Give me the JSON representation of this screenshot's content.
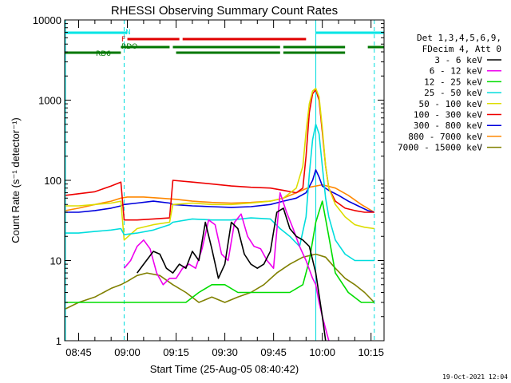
{
  "chart_data": {
    "type": "line",
    "title": "RHESSI Observing Summary Count Rates",
    "xlabel": "Start Time (25-Aug-05 08:40:42)",
    "ylabel": "Count Rate (s⁻¹ detector⁻¹)",
    "y_scale": "log",
    "ylim": [
      1,
      10000
    ],
    "xlim": [
      "08:40:42",
      "10:19:00"
    ],
    "x_ticks": [
      "08:45",
      "09:00",
      "09:15",
      "09:30",
      "09:45",
      "10:00",
      "10:15"
    ],
    "y_ticks": [
      "1",
      "10",
      "100",
      "1000",
      "10000"
    ],
    "timestamp": "19-Oct-2021 12:04",
    "legend": {
      "placement": "right",
      "header": [
        "Det 1,3,4,5,6,9,",
        "FDecim 4, Att 0"
      ]
    },
    "flags": [
      {
        "label": "N",
        "color": "#00e5e5",
        "segments": [
          [
            "08:40:42",
            "09:00"
          ],
          [
            "09:58",
            "10:19"
          ]
        ]
      },
      {
        "label": "F",
        "color": "#e00000",
        "segments": [
          [
            "09:00",
            "09:16"
          ],
          [
            "09:17",
            "09:55"
          ]
        ]
      },
      {
        "label": "RDO",
        "color": "#007700",
        "segments": [
          [
            "08:58",
            "09:13"
          ],
          [
            "09:14",
            "09:47"
          ],
          [
            "09:48",
            "10:07"
          ],
          [
            "10:14",
            "10:19"
          ]
        ]
      },
      {
        "label": "RD6",
        "color": "#007700",
        "segments": [
          [
            "08:40:42",
            "08:58"
          ],
          [
            "09:15",
            "09:47"
          ],
          [
            "09:48",
            "10:07"
          ]
        ]
      }
    ],
    "vlines": {
      "dashed_cyan": [
        "08:59",
        "10:16"
      ],
      "solid_cyan": [
        "09:58"
      ]
    },
    "series": [
      {
        "name": "3 - 6 keV",
        "color": "#000000",
        "x": [
          "09:03",
          "09:05",
          "09:08",
          "09:10",
          "09:12",
          "09:14",
          "09:16",
          "09:18",
          "09:20",
          "09:22",
          "09:24",
          "09:26",
          "09:28",
          "09:30",
          "09:32",
          "09:34",
          "09:36",
          "09:38",
          "09:40",
          "09:42",
          "09:44",
          "09:46",
          "09:48",
          "09:50",
          "09:52",
          "09:54",
          "09:56",
          "09:58",
          "10:00",
          "10:01"
        ],
        "values": [
          7,
          9,
          13,
          12,
          8,
          7,
          9,
          8,
          13,
          10,
          30,
          14,
          6,
          9,
          30,
          25,
          12,
          9,
          8,
          9,
          13,
          40,
          45,
          25,
          20,
          18,
          15,
          7,
          2,
          1
        ]
      },
      {
        "name": "6 - 12 keV",
        "color": "#ee00ee",
        "x": [
          "08:59",
          "09:01",
          "09:03",
          "09:05",
          "09:07",
          "09:09",
          "09:11",
          "09:13",
          "09:15",
          "09:17",
          "09:19",
          "09:21",
          "09:23",
          "09:25",
          "09:27",
          "09:29",
          "09:31",
          "09:33",
          "09:35",
          "09:37",
          "09:39",
          "09:41",
          "09:43",
          "09:45",
          "09:47",
          "09:49",
          "09:51",
          "09:53",
          "09:55",
          "09:57",
          "09:58",
          "09:59",
          "10:00",
          "10:02"
        ],
        "values": [
          8,
          10,
          15,
          18,
          14,
          7,
          5,
          6,
          6,
          8,
          9,
          8,
          14,
          32,
          28,
          12,
          10,
          30,
          38,
          20,
          15,
          14,
          10,
          8,
          70,
          40,
          25,
          15,
          10,
          6,
          5,
          3,
          2,
          1
        ]
      },
      {
        "name": "12 - 25 keV",
        "color": "#00dd00",
        "x": [
          "08:41",
          "08:45",
          "08:50",
          "08:55",
          "08:58",
          "09:02",
          "09:06",
          "09:10",
          "09:14",
          "09:18",
          "09:22",
          "09:26",
          "09:30",
          "09:34",
          "09:38",
          "09:42",
          "09:46",
          "09:50",
          "09:54",
          "09:56",
          "09:58",
          "10:00",
          "10:02",
          "10:04",
          "10:08",
          "10:12",
          "10:16"
        ],
        "values": [
          3,
          3,
          3,
          3,
          3,
          3,
          3,
          3,
          3,
          3,
          4,
          5,
          5,
          4,
          4,
          4,
          4,
          4,
          5,
          10,
          30,
          55,
          20,
          7,
          4,
          3,
          3
        ]
      },
      {
        "name": "25 - 50 keV",
        "color": "#00dddd",
        "x": [
          "08:41",
          "08:45",
          "08:50",
          "08:55",
          "08:58",
          "08:59",
          "09:03",
          "09:08",
          "09:13",
          "09:14",
          "09:20",
          "09:26",
          "09:32",
          "09:38",
          "09:44",
          "09:47",
          "09:50",
          "09:53",
          "09:55",
          "09:56",
          "09:57",
          "09:58",
          "09:59",
          "10:00",
          "10:01",
          "10:02",
          "10:04",
          "10:07",
          "10:10",
          "10:13",
          "10:16"
        ],
        "values": [
          22,
          22,
          23,
          24,
          25,
          21,
          22,
          24,
          28,
          30,
          33,
          32,
          32,
          34,
          33,
          25,
          20,
          15,
          35,
          120,
          320,
          500,
          380,
          150,
          60,
          35,
          18,
          12,
          10,
          10,
          10
        ]
      },
      {
        "name": "50 - 100 keV",
        "color": "#dddd00",
        "x": [
          "08:41",
          "08:45",
          "08:50",
          "08:55",
          "08:58",
          "08:59",
          "09:03",
          "09:08",
          "09:13",
          "09:14",
          "09:20",
          "09:26",
          "09:32",
          "09:38",
          "09:44",
          "09:48",
          "09:52",
          "09:54",
          "09:55",
          "09:56",
          "09:57",
          "09:58",
          "09:59",
          "10:00",
          "10:01",
          "10:02",
          "10:04",
          "10:07",
          "10:10",
          "10:13",
          "10:16"
        ],
        "values": [
          48,
          48,
          50,
          52,
          55,
          18,
          25,
          28,
          30,
          50,
          52,
          50,
          50,
          52,
          55,
          60,
          80,
          150,
          400,
          900,
          1300,
          1400,
          1100,
          450,
          150,
          80,
          50,
          35,
          28,
          26,
          25
        ]
      },
      {
        "name": "100 - 300 keV",
        "color": "#ee0000",
        "x": [
          "08:41",
          "08:45",
          "08:50",
          "08:55",
          "08:58",
          "08:59",
          "09:03",
          "09:08",
          "09:13",
          "09:14",
          "09:20",
          "09:26",
          "09:32",
          "09:38",
          "09:44",
          "09:48",
          "09:52",
          "09:54",
          "09:55",
          "09:56",
          "09:57",
          "09:58",
          "09:59",
          "10:00",
          "10:01",
          "10:02",
          "10:04",
          "10:07",
          "10:10",
          "10:13",
          "10:16"
        ],
        "values": [
          65,
          68,
          72,
          85,
          95,
          32,
          32,
          33,
          34,
          100,
          95,
          90,
          85,
          82,
          80,
          75,
          70,
          80,
          200,
          700,
          1200,
          1350,
          1000,
          400,
          150,
          80,
          55,
          45,
          42,
          40,
          40
        ]
      },
      {
        "name": "300 - 800 keV",
        "color": "#0000dd",
        "x": [
          "08:41",
          "08:45",
          "08:50",
          "08:55",
          "08:58",
          "08:59",
          "09:03",
          "09:08",
          "09:13",
          "09:14",
          "09:20",
          "09:26",
          "09:32",
          "09:38",
          "09:44",
          "09:48",
          "09:52",
          "09:55",
          "09:57",
          "09:58",
          "09:59",
          "10:00",
          "10:02",
          "10:05",
          "10:08",
          "10:11",
          "10:14",
          "10:16"
        ],
        "values": [
          40,
          40,
          42,
          45,
          48,
          50,
          52,
          55,
          52,
          50,
          48,
          47,
          46,
          47,
          50,
          55,
          60,
          70,
          100,
          135,
          110,
          85,
          75,
          65,
          55,
          48,
          42,
          40
        ]
      },
      {
        "name": "800 - 7000 keV",
        "color": "#ff8800",
        "x": [
          "08:41",
          "08:45",
          "08:50",
          "08:55",
          "08:58",
          "09:00",
          "09:05",
          "09:10",
          "09:15",
          "09:20",
          "09:26",
          "09:32",
          "09:38",
          "09:44",
          "09:48",
          "09:52",
          "09:56",
          "10:00",
          "10:04",
          "10:08",
          "10:12",
          "10:16"
        ],
        "values": [
          42,
          45,
          50,
          55,
          60,
          62,
          62,
          60,
          58,
          55,
          53,
          52,
          53,
          55,
          60,
          70,
          82,
          88,
          80,
          65,
          50,
          40
        ]
      },
      {
        "name": "7000 - 15000 keV",
        "color": "#808000",
        "x": [
          "08:41",
          "08:45",
          "08:50",
          "08:55",
          "08:58",
          "09:00",
          "09:03",
          "09:06",
          "09:10",
          "09:14",
          "09:18",
          "09:22",
          "09:26",
          "09:30",
          "09:34",
          "09:38",
          "09:42",
          "09:46",
          "09:50",
          "09:54",
          "09:58",
          "10:01",
          "10:04",
          "10:07",
          "10:10",
          "10:13",
          "10:16"
        ],
        "values": [
          2.5,
          3,
          3.5,
          4.5,
          5,
          5.5,
          6.5,
          7,
          6.5,
          5,
          4,
          3,
          3.5,
          3,
          3.5,
          4,
          5,
          7,
          9,
          11,
          12,
          11,
          8,
          6,
          5,
          4,
          3
        ]
      }
    ]
  }
}
